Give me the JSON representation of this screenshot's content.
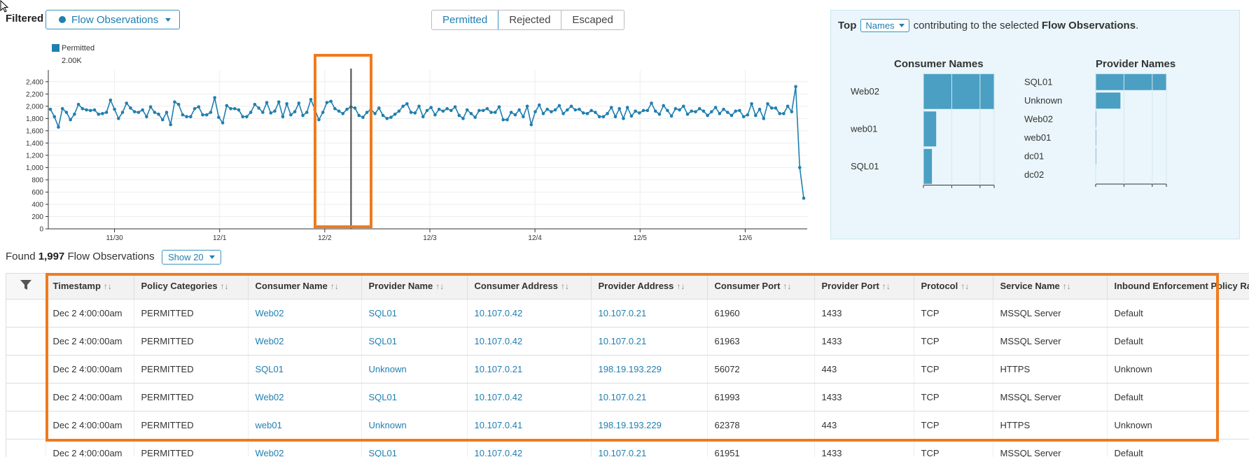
{
  "header": {
    "filtered_label": "Filtered",
    "flow_dropdown": "Flow Observations",
    "tabs": [
      {
        "label": "Permitted",
        "active": true
      },
      {
        "label": "Rejected",
        "active": false
      },
      {
        "label": "Escaped",
        "active": false
      }
    ]
  },
  "chart_data": {
    "type": "line",
    "legend": {
      "name": "Permitted",
      "value": "2.00K"
    },
    "y_ticks": [
      "0",
      "200",
      "400",
      "600",
      "800",
      "1,000",
      "1,200",
      "1,400",
      "1,600",
      "1,800",
      "2,000",
      "2,200",
      "2,400"
    ],
    "ylim": [
      0,
      2500
    ],
    "x_ticks": [
      {
        "label": "11/30",
        "x": 1
      },
      {
        "label": "12/1",
        "x": 2
      },
      {
        "label": "12/2",
        "x": 3
      },
      {
        "label": "12/3",
        "x": 4
      },
      {
        "label": "12/4",
        "x": 5
      },
      {
        "label": "12/5",
        "x": 6
      },
      {
        "label": "12/6",
        "x": 7
      }
    ],
    "xlim": [
      0.37,
      7.59
    ],
    "marker_x": 3.25,
    "series": [
      {
        "color": "#1f7fb0",
        "values": [
          1950,
          1830,
          1660,
          1960,
          1900,
          1780,
          1870,
          2030,
          1960,
          1940,
          1930,
          1940,
          1870,
          1880,
          1900,
          2100,
          1950,
          1800,
          1900,
          2050,
          1970,
          1910,
          1900,
          1940,
          1830,
          1990,
          1900,
          1870,
          1780,
          1900,
          1700,
          2070,
          2030,
          1860,
          1830,
          1830,
          1960,
          1990,
          1860,
          1860,
          1900,
          2140,
          1820,
          1730,
          2010,
          1960,
          1960,
          1940,
          1830,
          1830,
          1900,
          2030,
          1970,
          1900,
          2060,
          1890,
          1920,
          2070,
          1830,
          2040,
          1860,
          1910,
          2050,
          1850,
          1900,
          2110,
          1950,
          1780,
          1900,
          2060,
          2080,
          1960,
          1920,
          1880,
          1950,
          1990,
          1970,
          1850,
          1820,
          1900,
          1950,
          1880,
          1970,
          1850,
          1800,
          1820,
          1870,
          1920,
          2000,
          2040,
          1900,
          1890,
          2000,
          1830,
          1930,
          1980,
          1860,
          1950,
          1920,
          1960,
          1930,
          1990,
          1850,
          1800,
          1940,
          1880,
          1820,
          1930,
          1930,
          1960,
          1900,
          1900,
          1990,
          1780,
          1780,
          1900,
          1860,
          1940,
          1830,
          2000,
          1700,
          1910,
          2020,
          1880,
          1950,
          1910,
          1940,
          2010,
          1880,
          1940,
          2000,
          1940,
          1950,
          1890,
          1880,
          1930,
          1900,
          1830,
          1830,
          1880,
          1980,
          1830,
          1960,
          1800,
          1980,
          1840,
          1920,
          1890,
          1930,
          1930,
          2050,
          1920,
          1870,
          2010,
          1930,
          1840,
          1960,
          1940,
          2000,
          1870,
          1920,
          1910,
          1960,
          1920,
          1850,
          1910,
          1980,
          1880,
          1950,
          1900,
          1850,
          1920,
          1930,
          1830,
          1860,
          2040,
          1850,
          1950,
          1800,
          2040,
          1970,
          1970,
          1880,
          1880,
          2000,
          1910,
          2320,
          1000,
          500
        ]
      }
    ]
  },
  "right_panel": {
    "top_prefix": "Top",
    "names_dropdown": "Names",
    "sentence_middle": "contributing to the selected",
    "sentence_bold": "Flow Observations",
    "sentence_end": ".",
    "consumer": {
      "title": "Consumer Names",
      "bars": [
        {
          "label": "Web02",
          "value": 100
        },
        {
          "label": "web01",
          "value": 18
        },
        {
          "label": "SQL01",
          "value": 12
        }
      ]
    },
    "provider": {
      "title": "Provider Names",
      "bars": [
        {
          "label": "SQL01",
          "value": 100
        },
        {
          "label": "Unknown",
          "value": 35
        },
        {
          "label": "Web02",
          "value": 1
        },
        {
          "label": "web01",
          "value": 1
        },
        {
          "label": "dc01",
          "value": 0.5
        },
        {
          "label": "dc02",
          "value": 0
        }
      ]
    }
  },
  "found": {
    "prefix": "Found",
    "count": "1,997",
    "suffix": "Flow Observations",
    "show_dropdown": "Show 20"
  },
  "table": {
    "columns": [
      "Timestamp",
      "Policy Categories",
      "Consumer Name",
      "Provider Name",
      "Consumer Address",
      "Provider Address",
      "Consumer Port",
      "Provider Port",
      "Protocol",
      "Service Name",
      "Inbound Enforcement Policy Ra"
    ],
    "sortable": [
      true,
      true,
      true,
      true,
      true,
      true,
      true,
      true,
      true,
      true,
      false
    ],
    "rows": [
      [
        "Dec 2 4:00:00am",
        "PERMITTED",
        "Web02",
        "SQL01",
        "10.107.0.42",
        "10.107.0.21",
        "61960",
        "1433",
        "TCP",
        "MSSQL Server",
        "Default"
      ],
      [
        "Dec 2 4:00:00am",
        "PERMITTED",
        "Web02",
        "SQL01",
        "10.107.0.42",
        "10.107.0.21",
        "61963",
        "1433",
        "TCP",
        "MSSQL Server",
        "Default"
      ],
      [
        "Dec 2 4:00:00am",
        "PERMITTED",
        "SQL01",
        "Unknown",
        "10.107.0.21",
        "198.19.193.229",
        "56072",
        "443",
        "TCP",
        "HTTPS",
        "Unknown"
      ],
      [
        "Dec 2 4:00:00am",
        "PERMITTED",
        "Web02",
        "SQL01",
        "10.107.0.42",
        "10.107.0.21",
        "61993",
        "1433",
        "TCP",
        "MSSQL Server",
        "Default"
      ],
      [
        "Dec 2 4:00:00am",
        "PERMITTED",
        "web01",
        "Unknown",
        "10.107.0.41",
        "198.19.193.229",
        "62378",
        "443",
        "TCP",
        "HTTPS",
        "Unknown"
      ],
      [
        "Dec 2 4:00:00am",
        "PERMITTED",
        "Web02",
        "SQL01",
        "10.107.0.42",
        "10.107.0.21",
        "61951",
        "1433",
        "TCP",
        "MSSQL Server",
        "Default"
      ]
    ],
    "link_columns": [
      2,
      3,
      4,
      5
    ]
  },
  "colors": {
    "accent": "#1f7fb0",
    "bar": "#4a9fc3",
    "highlight": "#f07b1e"
  }
}
